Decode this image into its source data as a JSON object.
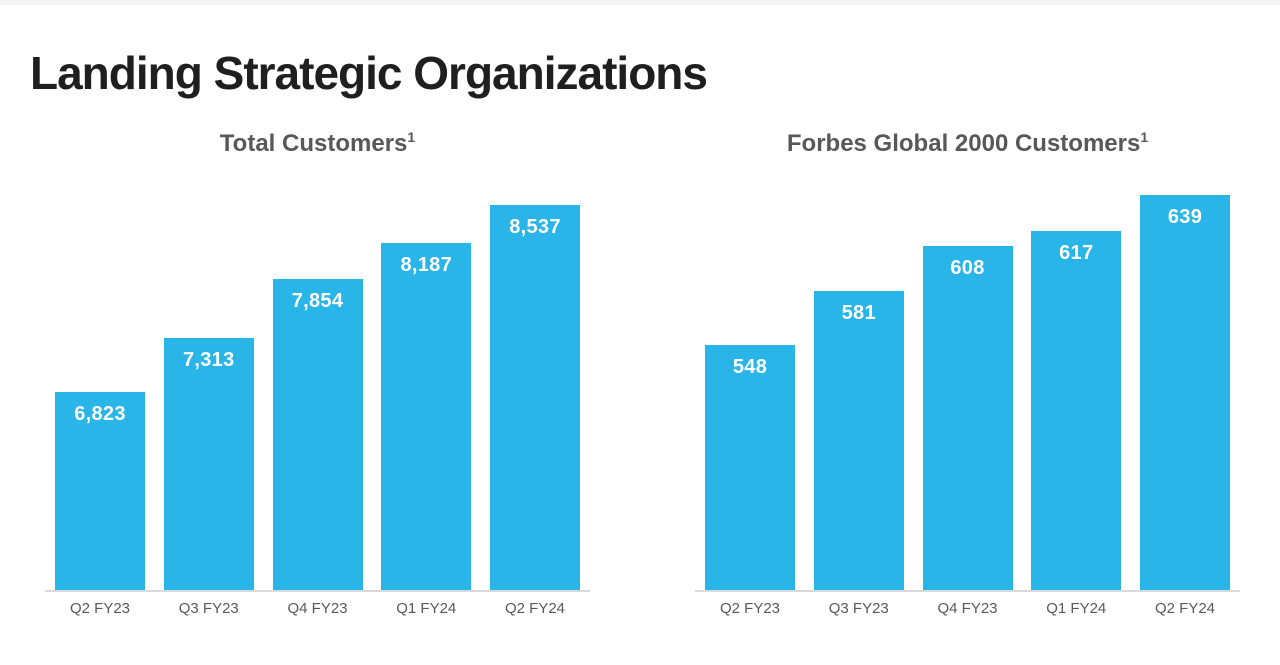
{
  "page": {
    "title": "Landing Strategic Organizations"
  },
  "colors": {
    "bar": "#29b5e8",
    "bar_value_label": "#ffffff",
    "slide_title": "#1f1f1f",
    "chart_title": "#58585b",
    "axis_label": "#595959",
    "axis_line": "#d9d9d9"
  },
  "chart_data": [
    {
      "type": "bar",
      "title": "Total Customers",
      "title_superscript": "1",
      "categories": [
        "Q2 FY23",
        "Q3 FY23",
        "Q4 FY23",
        "Q1 FY24",
        "Q2 FY24"
      ],
      "values": [
        6823,
        7313,
        7854,
        8187,
        8537
      ],
      "value_labels": [
        "6,823",
        "7,313",
        "7,854",
        "8,187",
        "8,537"
      ],
      "ylim": [
        5000,
        8800
      ],
      "xlabel": "",
      "ylabel": "",
      "grid": false,
      "legend": false,
      "bar_color": "#29b5e8",
      "value_label_position": "inside-top"
    },
    {
      "type": "bar",
      "title": "Forbes Global 2000 Customers",
      "title_superscript": "1",
      "categories": [
        "Q2 FY23",
        "Q3 FY23",
        "Q4 FY23",
        "Q1 FY24",
        "Q2 FY24"
      ],
      "values": [
        548,
        581,
        608,
        617,
        639
      ],
      "value_labels": [
        "548",
        "581",
        "608",
        "617",
        "639"
      ],
      "ylim": [
        400,
        650
      ],
      "xlabel": "",
      "ylabel": "",
      "grid": false,
      "legend": false,
      "bar_color": "#29b5e8",
      "value_label_position": "inside-top"
    }
  ]
}
